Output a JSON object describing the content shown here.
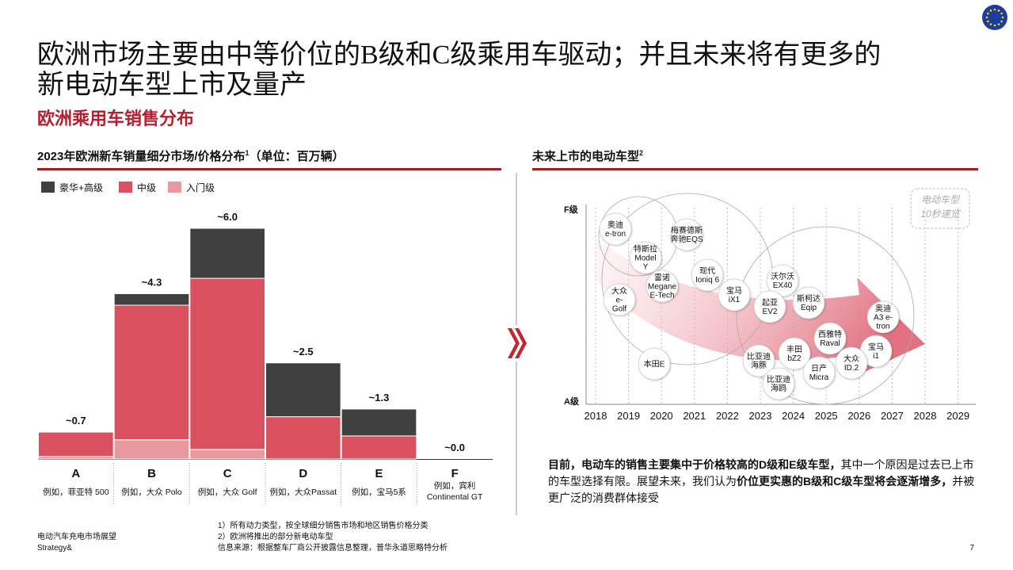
{
  "title_lines": [
    "欧洲市场主要由中等价位的B级和C级乘用车驱动；并且未来将有更多的",
    "新电动车型上市及量产"
  ],
  "subtitle": "欧洲乘用车销售分布",
  "left_header": {
    "text": "2023年欧洲新车销量细分市场/价格分布",
    "note": 1,
    "unit": "（单位：百万辆）"
  },
  "chart_data": {
    "type": "stacked_bar",
    "categories": [
      "A",
      "B",
      "C",
      "D",
      "E",
      "F"
    ],
    "examples": [
      [
        "例如，菲亚特 500"
      ],
      [
        "例如，大众 Polo"
      ],
      [
        "例如，大众 Golf"
      ],
      [
        "例如，大众Passat"
      ],
      [
        "例如，宝马5系"
      ],
      [
        "例如，宾利",
        "Continental GT"
      ]
    ],
    "series": [
      {
        "name": "豪华+高级",
        "color": "#404040",
        "values": [
          0,
          0.3,
          1.3,
          1.4,
          0.7,
          0
        ]
      },
      {
        "name": "中级",
        "color": "#d9505f",
        "values": [
          0.63,
          3.5,
          4.45,
          1.1,
          0.6,
          0
        ]
      },
      {
        "name": "入门级",
        "color": "#e8999d",
        "values": [
          0.07,
          0.5,
          0.25,
          0,
          0,
          0
        ]
      }
    ],
    "totals": [
      0.7,
      4.3,
      6.0,
      2.5,
      1.3,
      0.0
    ],
    "total_labels": [
      "~0.7",
      "~4.3",
      "~6.0",
      "~2.5",
      "~1.3",
      "~0.0"
    ]
  },
  "right_header": {
    "text": "未来上市的电动车型",
    "note": 2
  },
  "ev_models": {
    "y_axis": [
      "F级",
      "A级"
    ],
    "years": [
      2018,
      2019,
      2020,
      2021,
      2022,
      2023,
      2024,
      2025,
      2026,
      2027,
      2028,
      2029
    ],
    "badge_lines": [
      "电动车型",
      "10秒速览"
    ],
    "models": [
      [
        "奥迪",
        "e-tron"
      ],
      [
        "梅赛德斯",
        "奔驰EQS"
      ],
      [
        "特斯拉",
        "Model",
        "Y"
      ],
      [
        "雷诺",
        "Megane",
        "E-Tech"
      ],
      [
        "现代",
        "Ioniq 6"
      ],
      [
        "大众",
        "e-",
        "Golf"
      ],
      [
        "宝马",
        "iX1"
      ],
      [
        "沃尔沃",
        "EX40"
      ],
      [
        "起亚",
        "EV2"
      ],
      [
        "斯柯达",
        "Eqip"
      ],
      [
        "奥迪",
        "A3 e-",
        "tron"
      ],
      [
        "西雅特",
        "Raval"
      ],
      [
        "本田E"
      ],
      [
        "比亚迪",
        "海豚"
      ],
      [
        "丰田",
        "bZ2"
      ],
      [
        "宝马",
        "i1"
      ],
      [
        "大众",
        "ID.2"
      ],
      [
        "日产",
        "Micra"
      ],
      [
        "比亚迪",
        "海鸥"
      ]
    ]
  },
  "summary": [
    {
      "text": "目前，电动车的销售主要集中于价格较高的D级和E级车型，",
      "bold": true
    },
    {
      "text": "其中一个原因是过去已上市的车型选择有限。展望未来，我们认为",
      "bold": false
    },
    {
      "text": "价位更实惠的B级和C级车型将会逐渐增多，",
      "bold": true
    },
    {
      "text": "并被更广泛的消费群体接受",
      "bold": false
    }
  ],
  "footnotes": [
    "1）所有动力类型，按全球细分销售市场和地区销售价格分类",
    "2）欧洲将推出的部分新电动车型",
    "信息来源：根据整车厂商公开披露信息整理，普华永道思略特分析"
  ],
  "footer": {
    "lines": [
      "电动汽车充电市场展望",
      "Strategy&"
    ],
    "page": 7
  }
}
